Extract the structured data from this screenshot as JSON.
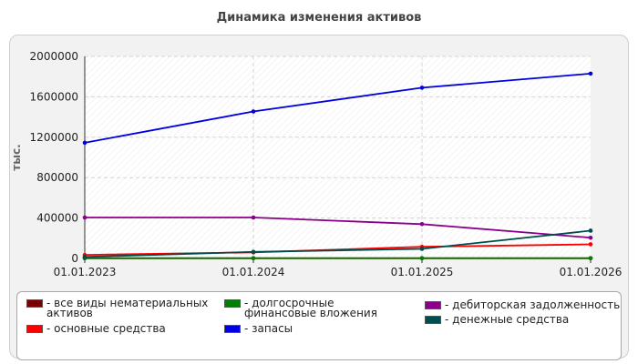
{
  "chart_data": {
    "type": "line",
    "title": "Динамика изменения активов",
    "ylabel": "тыс.",
    "xlabel": "",
    "x": [
      "01.01.2023",
      "01.01.2024",
      "01.01.2025",
      "01.01.2026"
    ],
    "ylim": [
      0,
      2000000
    ],
    "yticks": [
      0,
      400000,
      800000,
      1200000,
      1600000,
      2000000
    ],
    "ytick_labels": [
      "0",
      "400000",
      "800000",
      "1200000",
      "1600000",
      "2000000"
    ],
    "grid": true,
    "legend_position": "bottom",
    "series": [
      {
        "name": "- все виды нематериальных активов",
        "color": "#7a0000",
        "values": [
          2000,
          2000,
          2000,
          2000
        ]
      },
      {
        "name": "- основные средства",
        "color": "#ff0000",
        "values": [
          35000,
          60000,
          115000,
          140000
        ]
      },
      {
        "name": "- долгосрочные финансовые вложения",
        "color": "#008000",
        "values": [
          3000,
          3000,
          3000,
          3000
        ]
      },
      {
        "name": "- запасы",
        "color": "#0000e0",
        "values": [
          1145000,
          1455000,
          1690000,
          1830000
        ]
      },
      {
        "name": "- дебиторская задолженность",
        "color": "#8b008b",
        "values": [
          405000,
          405000,
          340000,
          205000
        ]
      },
      {
        "name": "- денежные средства",
        "color": "#004d4d",
        "values": [
          15000,
          65000,
          95000,
          275000
        ]
      }
    ]
  }
}
